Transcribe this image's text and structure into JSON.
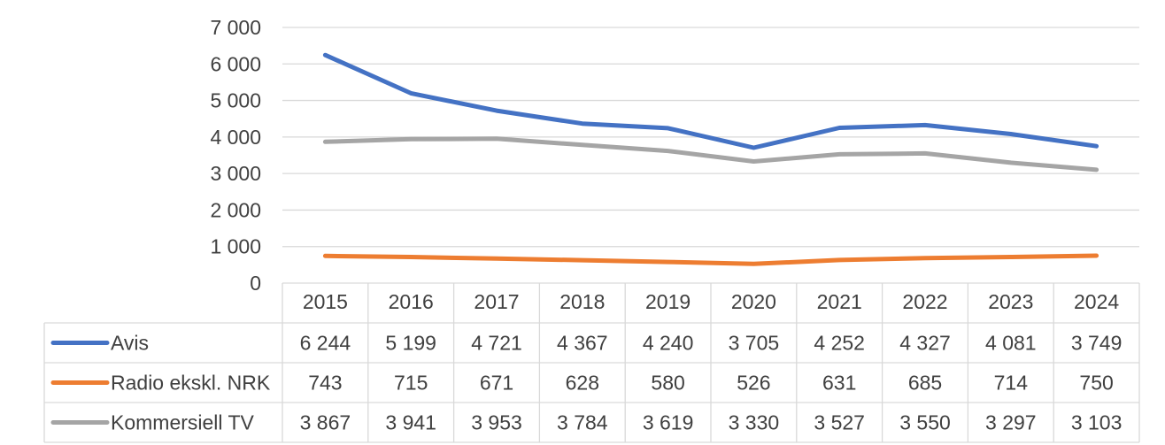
{
  "chart_data": {
    "type": "line",
    "categories": [
      "2015",
      "2016",
      "2017",
      "2018",
      "2019",
      "2020",
      "2021",
      "2022",
      "2023",
      "2024"
    ],
    "ylim": [
      0,
      7000
    ],
    "yticks": [
      0,
      1000,
      2000,
      3000,
      4000,
      5000,
      6000,
      7000
    ],
    "ytick_labels": [
      "0",
      "1 000",
      "2 000",
      "3 000",
      "4 000",
      "5 000",
      "6 000",
      "7 000"
    ],
    "grid": true,
    "legend_placement": "data-table",
    "series": [
      {
        "name": "Avis",
        "color": "#4472C4",
        "values": [
          6244,
          5199,
          4721,
          4367,
          4240,
          3705,
          4252,
          4327,
          4081,
          3749
        ],
        "labels": [
          "6 244",
          "5 199",
          "4 721",
          "4 367",
          "4 240",
          "3 705",
          "4 252",
          "4 327",
          "4 081",
          "3 749"
        ]
      },
      {
        "name": "Radio ekskl. NRK",
        "color": "#ED7D31",
        "values": [
          743,
          715,
          671,
          628,
          580,
          526,
          631,
          685,
          714,
          750
        ],
        "labels": [
          "743",
          "715",
          "671",
          "628",
          "580",
          "526",
          "631",
          "685",
          "714",
          "750"
        ]
      },
      {
        "name": "Kommersiell TV",
        "color": "#A5A5A5",
        "values": [
          3867,
          3941,
          3953,
          3784,
          3619,
          3330,
          3527,
          3550,
          3297,
          3103
        ],
        "labels": [
          "3 867",
          "3 941",
          "3 953",
          "3 784",
          "3 619",
          "3 330",
          "3 527",
          "3 550",
          "3 297",
          "3 103"
        ]
      }
    ]
  }
}
